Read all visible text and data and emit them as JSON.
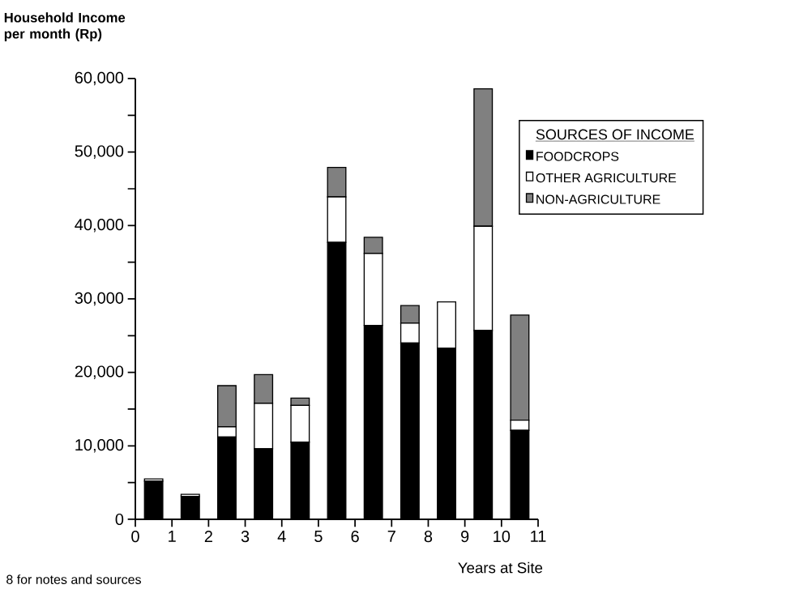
{
  "chart_data": {
    "type": "bar",
    "stacked": true,
    "xlabel": "Years at Site",
    "ylabel": "Household Income per month (Rp)",
    "legend_title": "SOURCES OF INCOME",
    "annotations": [
      "8 for notes and sources"
    ],
    "x": [
      0.5,
      1.5,
      2.5,
      3.5,
      4.5,
      5.5,
      6.5,
      7.5,
      8.5,
      9.5,
      10.5
    ],
    "series": [
      {
        "name": "FOODCROPS",
        "color": "#000000",
        "values": [
          5200,
          3100,
          11200,
          9600,
          10500,
          37700,
          26400,
          24000,
          23300,
          25700,
          12100
        ]
      },
      {
        "name": "OTHER AGRICULTURE",
        "color": "#ffffff",
        "values": [
          300,
          300,
          1400,
          6200,
          5000,
          6200,
          9800,
          2700,
          6300,
          14200,
          1400
        ]
      },
      {
        "name": "NON-AGRICULTURE",
        "color": "#808080",
        "values": [
          0,
          0,
          5600,
          3900,
          1000,
          4000,
          2200,
          2400,
          0,
          18700,
          14300
        ]
      }
    ],
    "xlim": [
      0,
      11
    ],
    "xticks": [
      0,
      1,
      2,
      3,
      4,
      5,
      6,
      7,
      8,
      9,
      10,
      11
    ],
    "ylim": [
      0,
      60000
    ],
    "yticks": [
      0,
      {
        "value": 5000,
        "label": null
      },
      {
        "value": 10000,
        "label": "10,000"
      },
      {
        "value": 15000,
        "label": null
      },
      {
        "value": 20000,
        "label": "20,000"
      },
      {
        "value": 25000,
        "label": null
      },
      {
        "value": 30000,
        "label": "30,000"
      },
      {
        "value": 35000,
        "label": null
      },
      {
        "value": 40000,
        "label": "40,000"
      },
      {
        "value": 45000,
        "label": null
      },
      {
        "value": 50000,
        "label": "50,000"
      },
      {
        "value": 55000,
        "label": null
      },
      {
        "value": 60000,
        "label": "60,000"
      }
    ],
    "legend": "top right",
    "grid": false
  }
}
